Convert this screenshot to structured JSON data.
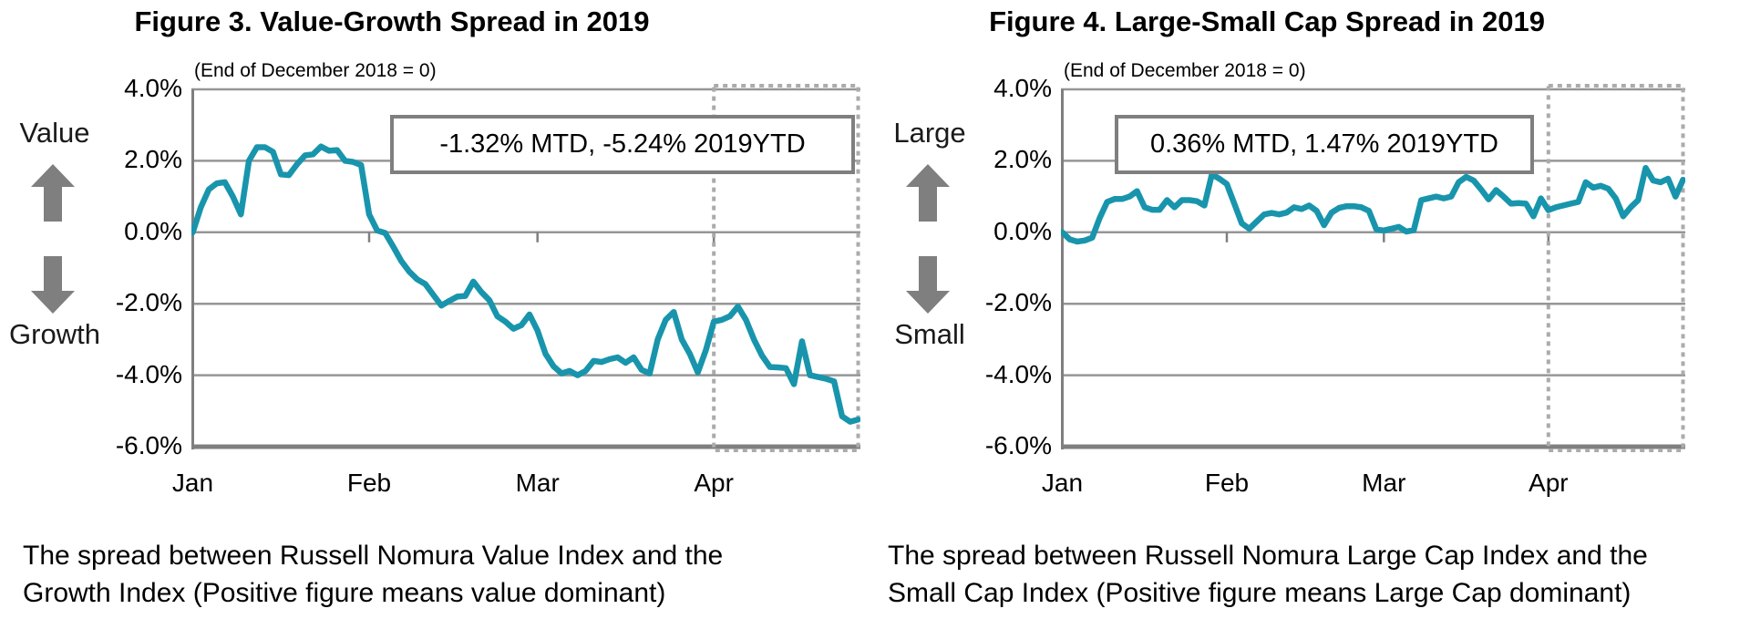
{
  "colors": {
    "line": "#1895AC",
    "grid": "#969696",
    "axis": "#7F7F7F",
    "annotation_border": "#7F7F7F",
    "highlight_border": "#ABABAB",
    "arrow": "#7F7F7F",
    "text": "#000000"
  },
  "chart_data": [
    {
      "type": "line",
      "title": "Figure 3. Value-Growth Spread in 2019",
      "subtitle": "(End of December 2018 = 0)",
      "annotation": "-1.32% MTD, -5.24% 2019YTD",
      "direction_labels": {
        "up": "Value",
        "down": "Growth"
      },
      "caption_line1": "The spread between Russell Nomura Value Index and the",
      "caption_line2": "Growth Index (Positive figure means value dominant)",
      "x_categories": [
        "Jan",
        "Feb",
        "Mar",
        "Apr"
      ],
      "month_start_index": [
        0,
        22,
        43,
        65
      ],
      "highlight_start_index": 65,
      "ylim": [
        -6,
        4
      ],
      "ytick_step": 2,
      "ytick_labels": [
        "4.0%",
        "2.0%",
        "0.0%",
        "-2.0%",
        "-4.0%",
        "-6.0%"
      ],
      "grid": true,
      "legend": "none",
      "unit": "%",
      "line_color": "#1895AC",
      "values": [
        0.0,
        0.7,
        1.2,
        1.37,
        1.4,
        1.0,
        0.5,
        2.0,
        2.38,
        2.38,
        2.25,
        1.62,
        1.6,
        1.9,
        2.15,
        2.18,
        2.4,
        2.28,
        2.3,
        2.0,
        1.97,
        1.88,
        0.5,
        0.05,
        -0.02,
        -0.4,
        -0.8,
        -1.1,
        -1.32,
        -1.45,
        -1.75,
        -2.05,
        -1.92,
        -1.8,
        -1.78,
        -1.38,
        -1.67,
        -1.9,
        -2.35,
        -2.5,
        -2.7,
        -2.6,
        -2.3,
        -2.75,
        -3.4,
        -3.75,
        -3.95,
        -3.88,
        -4.0,
        -3.88,
        -3.6,
        -3.63,
        -3.55,
        -3.5,
        -3.65,
        -3.5,
        -3.85,
        -3.95,
        -3.0,
        -2.45,
        -2.23,
        -3.0,
        -3.4,
        -3.92,
        -3.3,
        -2.5,
        -2.45,
        -2.35,
        -2.08,
        -2.45,
        -3.0,
        -3.45,
        -3.77,
        -3.78,
        -3.8,
        -4.25,
        -3.05,
        -4.0,
        -4.05,
        -4.1,
        -4.17,
        -5.15,
        -5.3,
        -5.24
      ]
    },
    {
      "type": "line",
      "title": "Figure 4. Large-Small Cap Spread in 2019",
      "subtitle": "(End of December 2018 = 0)",
      "annotation": "0.36% MTD, 1.47% 2019YTD",
      "direction_labels": {
        "up": "Large",
        "down": "Small"
      },
      "caption_line1": "The spread between Russell Nomura Large Cap Index and the",
      "caption_line2": "Small Cap Index (Positive figure means Large Cap dominant)",
      "x_categories": [
        "Jan",
        "Feb",
        "Mar",
        "Apr"
      ],
      "month_start_index": [
        0,
        22,
        43,
        65
      ],
      "highlight_start_index": 65,
      "ylim": [
        -6,
        4
      ],
      "ytick_step": 2,
      "ytick_labels": [
        "4.0%",
        "2.0%",
        "0.0%",
        "-2.0%",
        "-4.0%",
        "-6.0%"
      ],
      "grid": true,
      "legend": "none",
      "unit": "%",
      "line_color": "#1895AC",
      "values": [
        0.0,
        -0.2,
        -0.26,
        -0.23,
        -0.15,
        0.4,
        0.85,
        0.93,
        0.93,
        1.0,
        1.15,
        0.7,
        0.63,
        0.63,
        0.9,
        0.7,
        0.9,
        0.9,
        0.87,
        0.75,
        1.62,
        1.5,
        1.35,
        0.8,
        0.25,
        0.1,
        0.3,
        0.5,
        0.54,
        0.5,
        0.55,
        0.7,
        0.65,
        0.75,
        0.6,
        0.2,
        0.55,
        0.68,
        0.73,
        0.73,
        0.7,
        0.6,
        0.08,
        0.05,
        0.1,
        0.15,
        0.02,
        0.06,
        0.9,
        0.95,
        1.0,
        0.95,
        1.0,
        1.4,
        1.55,
        1.45,
        1.2,
        0.92,
        1.18,
        1.0,
        0.8,
        0.82,
        0.8,
        0.45,
        0.95,
        0.62,
        0.7,
        0.75,
        0.8,
        0.85,
        1.4,
        1.25,
        1.3,
        1.22,
        0.95,
        0.45,
        0.7,
        0.9,
        1.8,
        1.45,
        1.4,
        1.5,
        1.0,
        1.47
      ]
    }
  ]
}
